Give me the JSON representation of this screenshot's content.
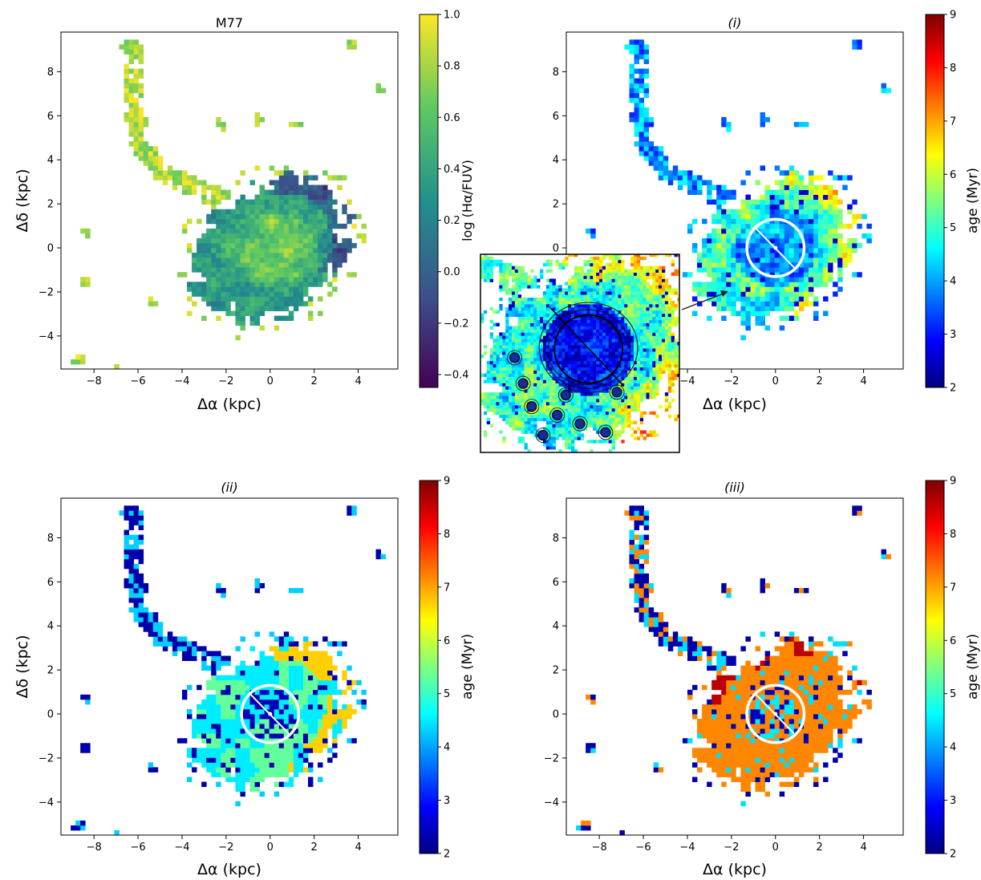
{
  "chart_data": [
    {
      "type": "heatmap",
      "id": "m77",
      "title": "M77",
      "xlabel": "Δα (kpc)",
      "ylabel": "Δδ (kpc)",
      "xlim": [
        -9.5,
        5.8
      ],
      "ylim": [
        -5.5,
        9.8
      ],
      "xticks": [
        -8,
        -6,
        -4,
        -2,
        0,
        2,
        4
      ],
      "yticks": [
        -4,
        -2,
        0,
        2,
        4,
        6,
        8
      ],
      "colorbar": {
        "label": "log (Hα/FUV)",
        "range": [
          -0.45,
          1.0
        ],
        "ticks": [
          -0.4,
          -0.2,
          0.0,
          0.2,
          0.4,
          0.6,
          0.8,
          1.0
        ],
        "tick_labels": [
          "−0.4",
          "−0.2",
          "0.0",
          "0.2",
          "0.4",
          "0.6",
          "0.8",
          "1.0"
        ],
        "colormap": "viridis"
      },
      "colormap_stops": [
        "#440154",
        "#3b528b",
        "#21918c",
        "#5ec962",
        "#fde725"
      ]
    },
    {
      "type": "heatmap",
      "id": "panel-i",
      "title": "(i)",
      "xlabel": "Δα (kpc)",
      "ylabel": "",
      "xlim": [
        -9.5,
        5.8
      ],
      "ylim": [
        -5.5,
        9.8
      ],
      "xticks": [
        -4,
        -2,
        0,
        2,
        4
      ],
      "yticks": [
        0,
        2,
        4,
        6,
        8
      ],
      "colorbar": {
        "label": "age (Myr)",
        "range": [
          2,
          9
        ],
        "ticks": [
          2,
          3,
          4,
          5,
          6,
          7,
          8,
          9
        ],
        "tick_labels": [
          "2",
          "3",
          "4",
          "5",
          "6",
          "7",
          "8",
          "9"
        ],
        "colormap": "jet"
      },
      "circle": {
        "center": [
          0,
          0
        ],
        "radius_kpc": 1.3
      }
    },
    {
      "type": "heatmap",
      "id": "panel-ii",
      "title": "(ii)",
      "xlabel": "Δα (kpc)",
      "ylabel": "Δδ (kpc)",
      "xlim": [
        -9.5,
        5.8
      ],
      "ylim": [
        -5.5,
        9.8
      ],
      "xticks": [
        -8,
        -6,
        -4,
        -2,
        0,
        2,
        4
      ],
      "yticks": [
        -4,
        -2,
        0,
        2,
        4,
        6,
        8
      ],
      "colorbar": {
        "label": "age (Myr)",
        "range": [
          2,
          9
        ],
        "ticks": [
          2,
          3,
          4,
          5,
          6,
          7,
          8,
          9
        ],
        "tick_labels": [
          "2",
          "3",
          "4",
          "5",
          "6",
          "7",
          "8",
          "9"
        ],
        "colormap": "jet"
      },
      "circle": {
        "center": [
          0,
          0
        ],
        "radius_kpc": 1.3
      }
    },
    {
      "type": "heatmap",
      "id": "panel-iii",
      "title": "(iii)",
      "xlabel": "Δα (kpc)",
      "ylabel": "",
      "xlim": [
        -9.5,
        5.8
      ],
      "ylim": [
        -5.5,
        9.8
      ],
      "xticks": [
        -8,
        -6,
        -4,
        -2,
        0,
        2,
        4
      ],
      "yticks": [
        -4,
        -2,
        0,
        2,
        4,
        6,
        8
      ],
      "colorbar": {
        "label": "age (Myr)",
        "range": [
          2,
          9
        ],
        "ticks": [
          2,
          3,
          4,
          5,
          6,
          7,
          8,
          9
        ],
        "tick_labels": [
          "2",
          "3",
          "4",
          "5",
          "6",
          "7",
          "8",
          "9"
        ],
        "colormap": "jet"
      },
      "circle": {
        "center": [
          0,
          0
        ],
        "radius_kpc": 1.3
      }
    }
  ],
  "jet_stops": [
    "#00007f",
    "#0000ff",
    "#007fff",
    "#00ffff",
    "#7fff7f",
    "#ffff00",
    "#ff7f00",
    "#ff0000",
    "#7f0000"
  ]
}
